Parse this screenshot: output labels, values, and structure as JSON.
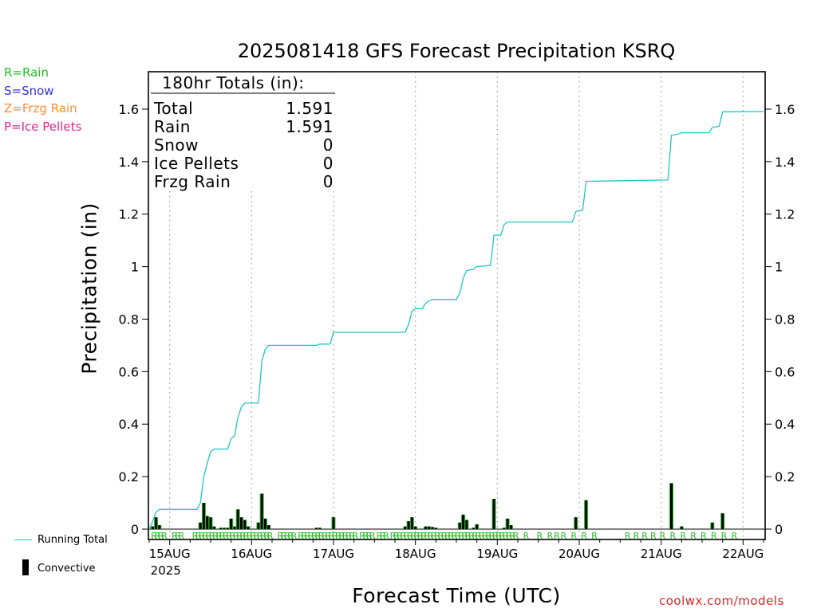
{
  "chart_data": {
    "type": "bar+line",
    "title": "2025081418 GFS Forecast Precipitation KSRQ",
    "xlabel": "Forecast Time (UTC)",
    "ylabel": "Precipitation (in)",
    "xlim": [
      0,
      180
    ],
    "ylim": [
      0,
      1.75
    ],
    "y_ticks": [
      0,
      0.2,
      0.4,
      0.6,
      0.8,
      1,
      1.2,
      1.4,
      1.6
    ],
    "y_tick_labels": [
      "0",
      "0.2",
      "0.4",
      "0.6",
      "0.8",
      "1",
      "1.2",
      "1.4",
      "1.6"
    ],
    "x_ticks": [
      {
        "hour": 6,
        "label": "15AUG",
        "sublabel": "2025"
      },
      {
        "hour": 30,
        "label": "16AUG"
      },
      {
        "hour": 54,
        "label": "17AUG"
      },
      {
        "hour": 78,
        "label": "18AUG"
      },
      {
        "hour": 102,
        "label": "19AUG"
      },
      {
        "hour": 126,
        "label": "20AUG"
      },
      {
        "hour": 150,
        "label": "21AUG"
      },
      {
        "hour": 174,
        "label": "22AUG"
      }
    ],
    "grid": "vertical dotted",
    "totals_header": "180hr Totals (in):",
    "totals": [
      {
        "label": "Total",
        "value": "1.591"
      },
      {
        "label": "Rain",
        "value": "1.591"
      },
      {
        "label": "Snow",
        "value": "0"
      },
      {
        "label": "Ice Pellets",
        "value": "0"
      },
      {
        "label": "Frzg Rain",
        "value": "0"
      }
    ],
    "precip_type_legend": [
      {
        "label": "R=Rain",
        "color": "#22c222"
      },
      {
        "label": "S=Snow",
        "color": "#3333dd"
      },
      {
        "label": "Z=Frzg Rain",
        "color": "#ff8c33"
      },
      {
        "label": "P=Ice Pellets",
        "color": "#ee2288"
      }
    ],
    "running_total_color": "#22c4c4",
    "rain_color": "#22c222",
    "convective_color": "#000000",
    "series_legend": {
      "running_total": "Running Total",
      "convective": "Convective"
    },
    "precip_bars": [
      {
        "hour": 1,
        "value": 0.01
      },
      {
        "hour": 2,
        "value": 0.045
      },
      {
        "hour": 3,
        "value": 0.015
      },
      {
        "hour": 15,
        "value": 0.025
      },
      {
        "hour": 16,
        "value": 0.1
      },
      {
        "hour": 17,
        "value": 0.05
      },
      {
        "hour": 18,
        "value": 0.045
      },
      {
        "hour": 19,
        "value": 0.01
      },
      {
        "hour": 21,
        "value": 0.005
      },
      {
        "hour": 22,
        "value": 0.005
      },
      {
        "hour": 23,
        "value": 0.005
      },
      {
        "hour": 24,
        "value": 0.04
      },
      {
        "hour": 25,
        "value": 0.01
      },
      {
        "hour": 26,
        "value": 0.075
      },
      {
        "hour": 27,
        "value": 0.045
      },
      {
        "hour": 28,
        "value": 0.035
      },
      {
        "hour": 29,
        "value": 0.01
      },
      {
        "hour": 32,
        "value": 0.025
      },
      {
        "hour": 33,
        "value": 0.135
      },
      {
        "hour": 34,
        "value": 0.04
      },
      {
        "hour": 35,
        "value": 0.015
      },
      {
        "hour": 49,
        "value": 0.005
      },
      {
        "hour": 50,
        "value": 0.005
      },
      {
        "hour": 54,
        "value": 0.045
      },
      {
        "hour": 75,
        "value": 0.01
      },
      {
        "hour": 76,
        "value": 0.03
      },
      {
        "hour": 77,
        "value": 0.045
      },
      {
        "hour": 78,
        "value": 0.01
      },
      {
        "hour": 81,
        "value": 0.01
      },
      {
        "hour": 82,
        "value": 0.01
      },
      {
        "hour": 83,
        "value": 0.008
      },
      {
        "hour": 84,
        "value": 0.005
      },
      {
        "hour": 91,
        "value": 0.025
      },
      {
        "hour": 92,
        "value": 0.055
      },
      {
        "hour": 93,
        "value": 0.035
      },
      {
        "hour": 95,
        "value": 0.005
      },
      {
        "hour": 96,
        "value": 0.018
      },
      {
        "hour": 101,
        "value": 0.115
      },
      {
        "hour": 104,
        "value": 0.005
      },
      {
        "hour": 105,
        "value": 0.04
      },
      {
        "hour": 106,
        "value": 0.015
      },
      {
        "hour": 125,
        "value": 0.045
      },
      {
        "hour": 128,
        "value": 0.11
      },
      {
        "hour": 153,
        "value": 0.175
      },
      {
        "hour": 156,
        "value": 0.01
      },
      {
        "hour": 165,
        "value": 0.025
      },
      {
        "hour": 168,
        "value": 0.06
      }
    ],
    "running_total": [
      [
        0,
        0
      ],
      [
        1,
        0.03
      ],
      [
        2,
        0.065
      ],
      [
        3,
        0.075
      ],
      [
        14,
        0.075
      ],
      [
        15,
        0.1
      ],
      [
        16,
        0.2
      ],
      [
        17,
        0.25
      ],
      [
        18,
        0.295
      ],
      [
        19,
        0.305
      ],
      [
        23,
        0.305
      ],
      [
        24,
        0.345
      ],
      [
        25,
        0.355
      ],
      [
        26,
        0.425
      ],
      [
        27,
        0.465
      ],
      [
        28,
        0.48
      ],
      [
        32,
        0.48
      ],
      [
        33,
        0.64
      ],
      [
        34,
        0.685
      ],
      [
        35,
        0.7
      ],
      [
        49,
        0.7
      ],
      [
        50,
        0.705
      ],
      [
        53,
        0.705
      ],
      [
        54,
        0.75
      ],
      [
        75,
        0.75
      ],
      [
        76,
        0.78
      ],
      [
        77,
        0.83
      ],
      [
        78,
        0.84
      ],
      [
        80,
        0.84
      ],
      [
        81,
        0.86
      ],
      [
        82,
        0.87
      ],
      [
        83,
        0.875
      ],
      [
        90,
        0.875
      ],
      [
        91,
        0.9
      ],
      [
        92,
        0.955
      ],
      [
        93,
        0.985
      ],
      [
        95,
        0.99
      ],
      [
        96,
        1.0
      ],
      [
        100,
        1.005
      ],
      [
        101,
        1.12
      ],
      [
        103,
        1.12
      ],
      [
        104,
        1.16
      ],
      [
        105,
        1.17
      ],
      [
        124,
        1.17
      ],
      [
        125,
        1.21
      ],
      [
        127,
        1.215
      ],
      [
        128,
        1.325
      ],
      [
        152,
        1.33
      ],
      [
        153,
        1.5
      ],
      [
        155,
        1.505
      ],
      [
        156,
        1.51
      ],
      [
        164,
        1.51
      ],
      [
        165,
        1.53
      ],
      [
        167,
        1.535
      ],
      [
        168,
        1.59
      ],
      [
        180,
        1.591
      ]
    ],
    "rain_markers": "R"
  }
}
